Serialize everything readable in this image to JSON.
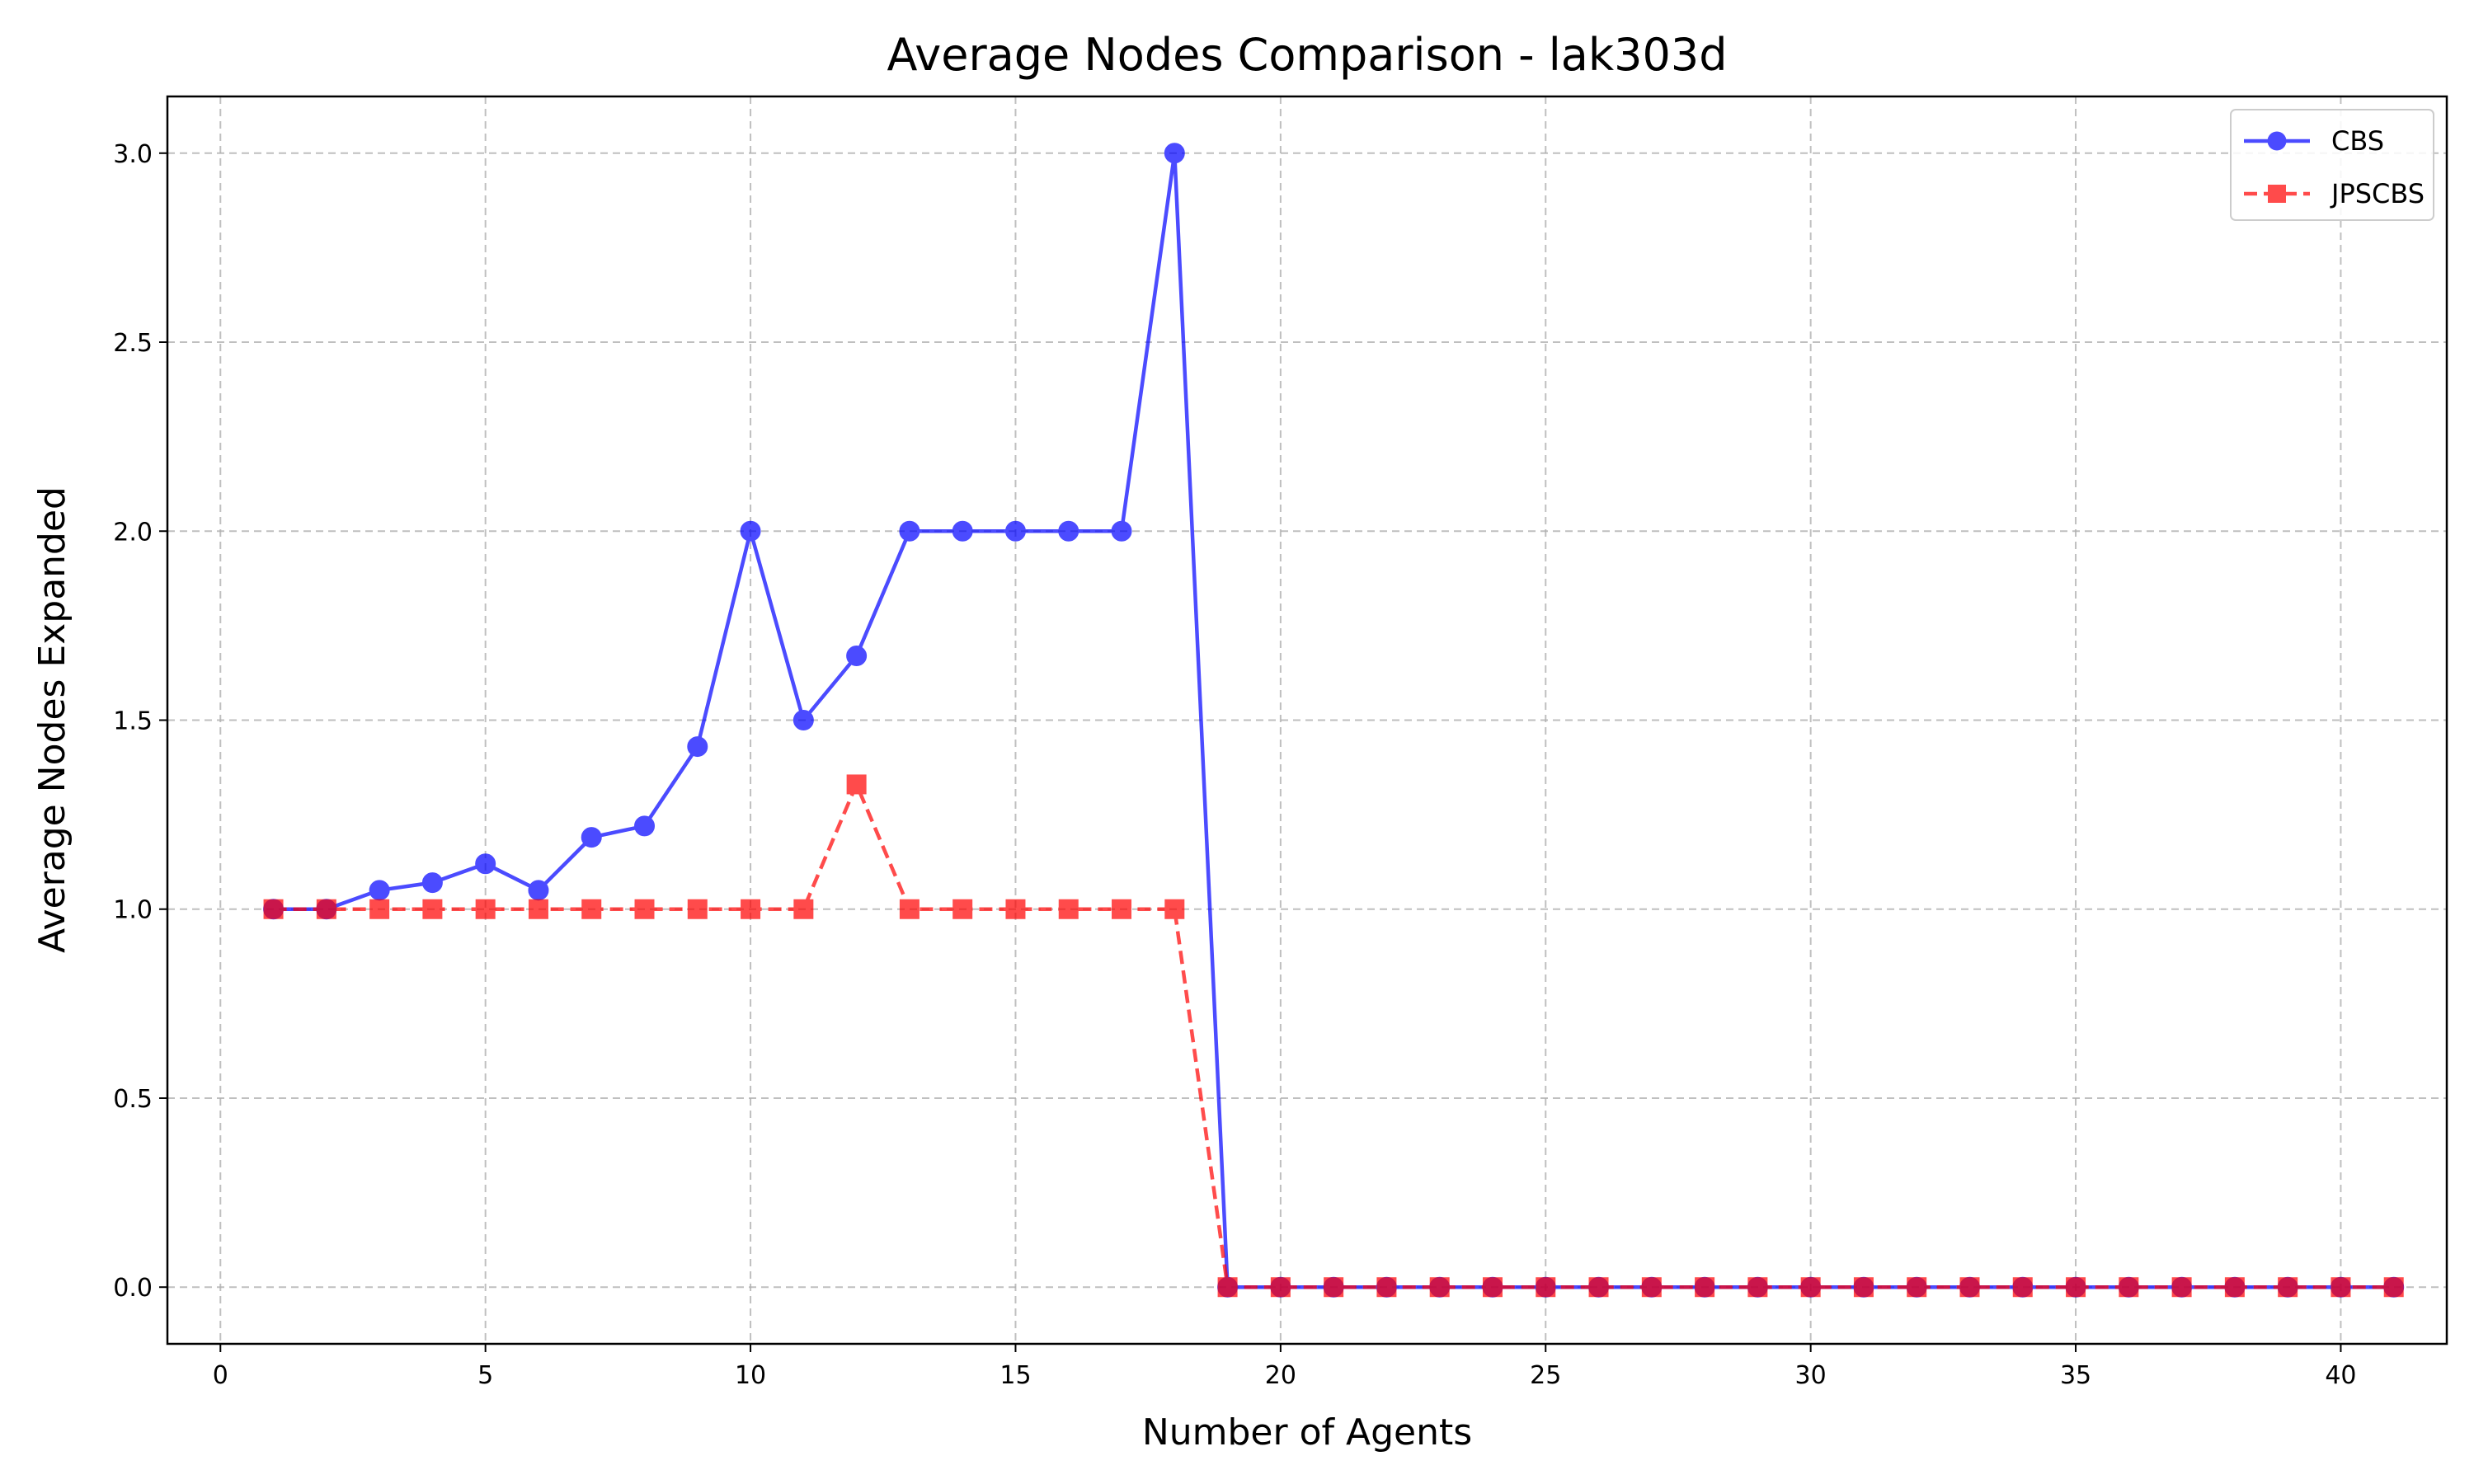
{
  "chart_data": {
    "type": "line",
    "title": "Average Nodes Comparison - lak303d",
    "xlabel": "Number of Agents",
    "ylabel": "Average Nodes Expanded",
    "xlim": [
      -1,
      42
    ],
    "ylim": [
      -0.15,
      3.15
    ],
    "xticks": [
      0,
      5,
      10,
      15,
      20,
      25,
      30,
      35,
      40
    ],
    "yticks": [
      0.0,
      0.5,
      1.0,
      1.5,
      2.0,
      2.5,
      3.0
    ],
    "ytick_labels": [
      "0.0",
      "0.5",
      "1.0",
      "1.5",
      "2.0",
      "2.5",
      "3.0"
    ],
    "grid": true,
    "legend_position": "top-right",
    "x": [
      1,
      2,
      3,
      4,
      5,
      6,
      7,
      8,
      9,
      10,
      11,
      12,
      13,
      14,
      15,
      16,
      17,
      18,
      19,
      20,
      21,
      22,
      23,
      24,
      25,
      26,
      27,
      28,
      29,
      30,
      31,
      32,
      33,
      34,
      35,
      36,
      37,
      38,
      39,
      40,
      41
    ],
    "series": [
      {
        "name": "CBS",
        "color": "#0000ff",
        "marker": "circle",
        "linestyle": "solid",
        "values": [
          1.0,
          1.0,
          1.05,
          1.07,
          1.12,
          1.05,
          1.19,
          1.22,
          1.43,
          2.0,
          1.5,
          1.67,
          2.0,
          2.0,
          2.0,
          2.0,
          2.0,
          3.0,
          0,
          0,
          0,
          0,
          0,
          0,
          0,
          0,
          0,
          0,
          0,
          0,
          0,
          0,
          0,
          0,
          0,
          0,
          0,
          0,
          0,
          0,
          0
        ]
      },
      {
        "name": "JPSCBS",
        "color": "#ff0000",
        "marker": "square",
        "linestyle": "dashed",
        "values": [
          1.0,
          1.0,
          1.0,
          1.0,
          1.0,
          1.0,
          1.0,
          1.0,
          1.0,
          1.0,
          1.0,
          1.33,
          1.0,
          1.0,
          1.0,
          1.0,
          1.0,
          1.0,
          0,
          0,
          0,
          0,
          0,
          0,
          0,
          0,
          0,
          0,
          0,
          0,
          0,
          0,
          0,
          0,
          0,
          0,
          0,
          0,
          0,
          0,
          0
        ]
      }
    ]
  }
}
